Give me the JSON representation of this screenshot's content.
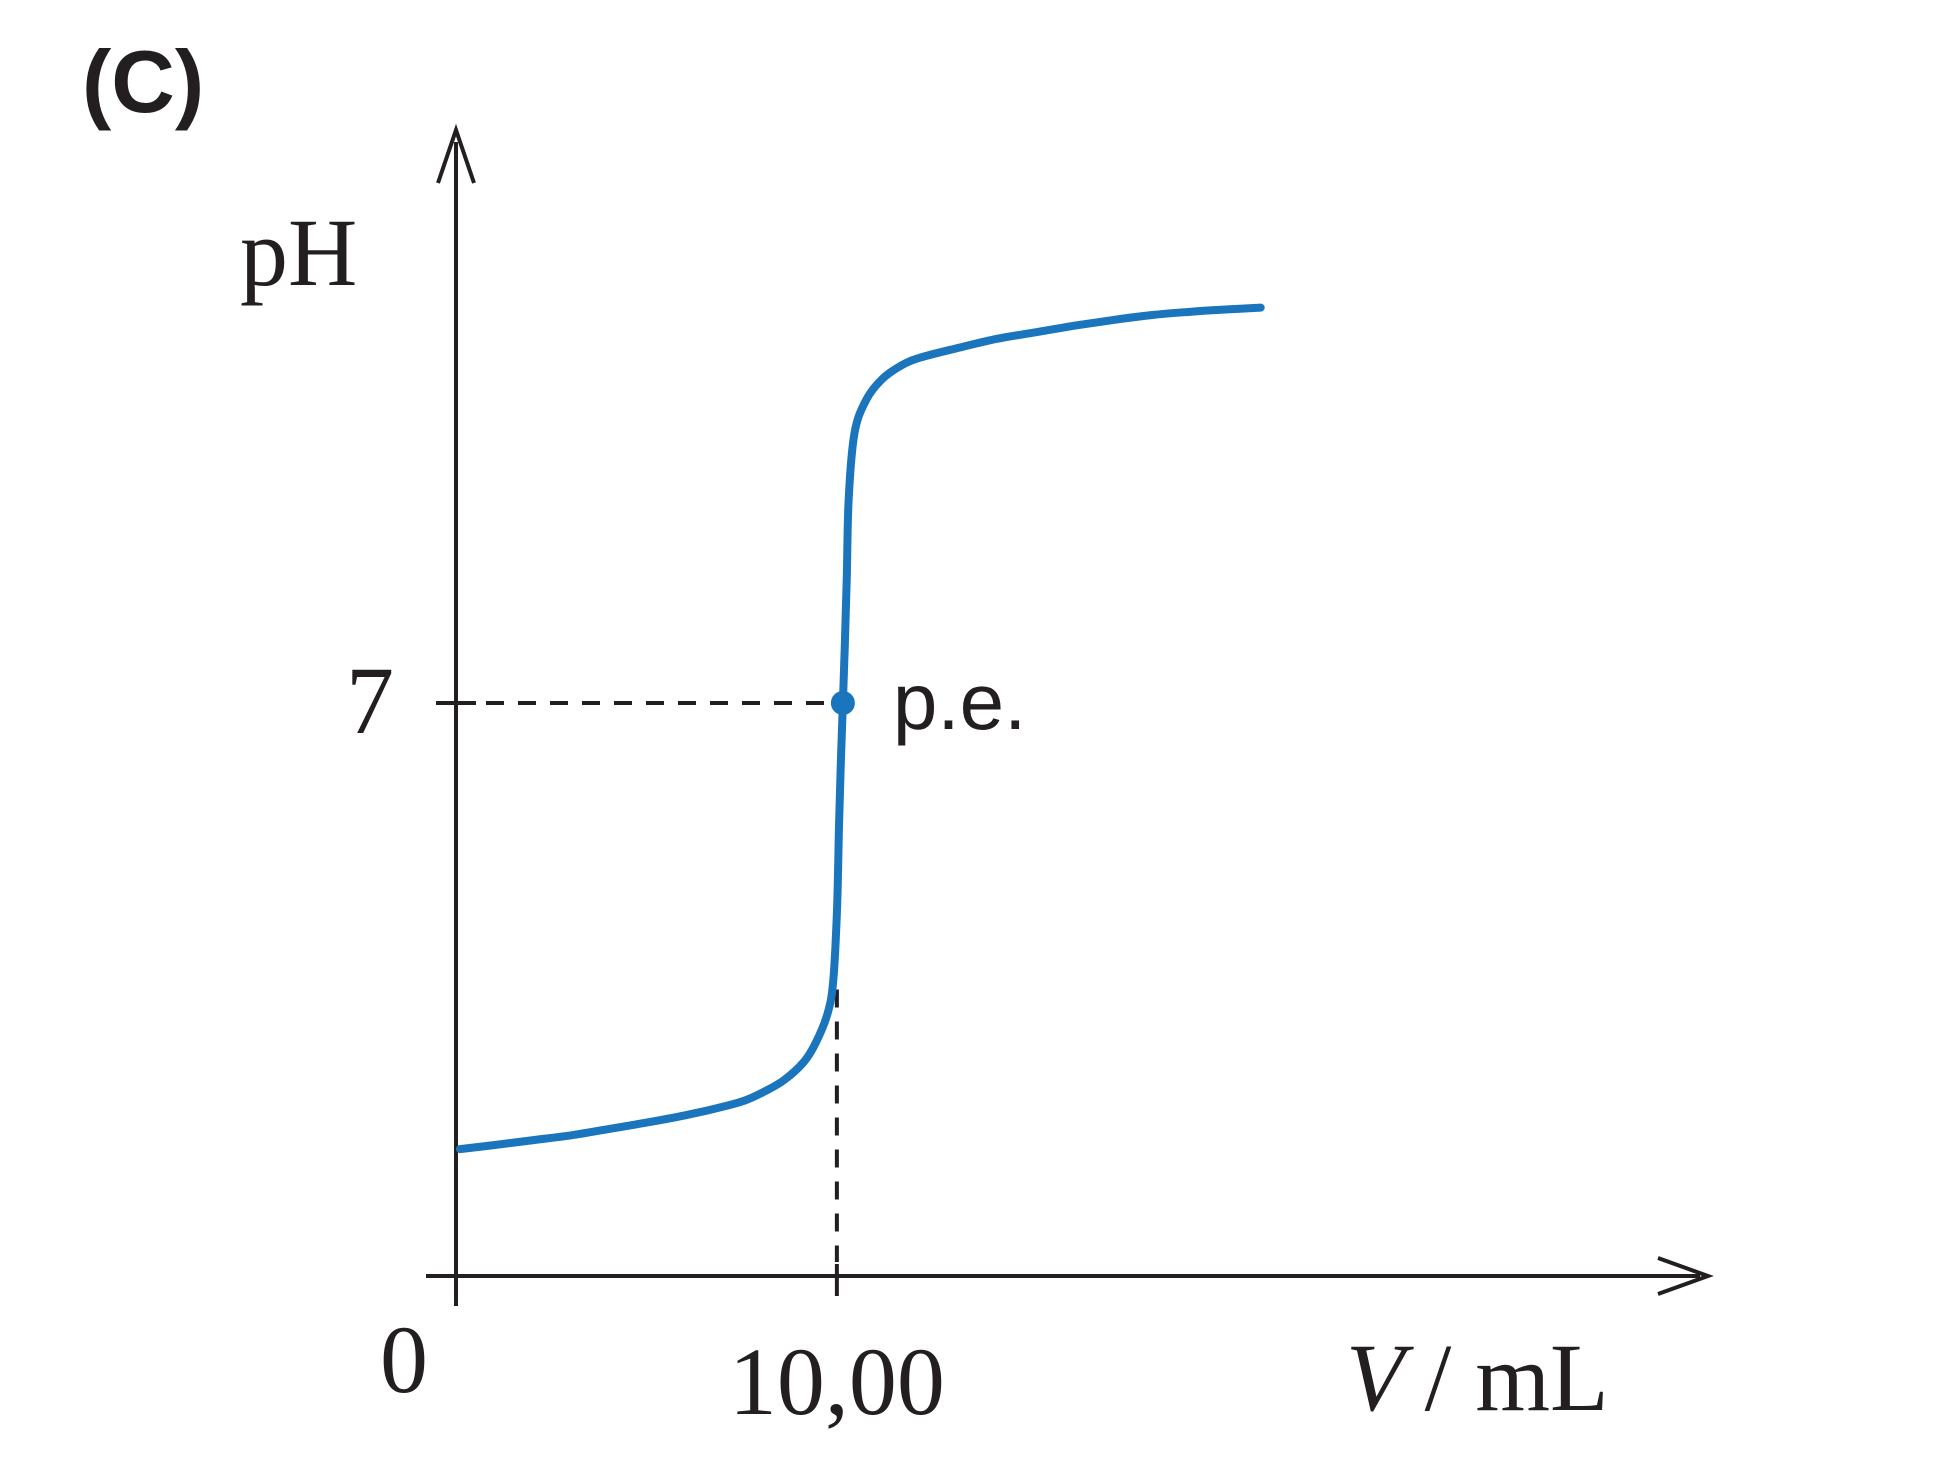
{
  "panel_label": "(C)",
  "chart_data": {
    "type": "line",
    "title": "",
    "ylabel": "pH",
    "xlabel": "V / mL",
    "xlabel_var": "V",
    "xlabel_unit": "/ mL",
    "origin_label": "0",
    "x_ticks": [
      {
        "value": 10.0,
        "label": "10,00"
      }
    ],
    "y_ticks": [
      {
        "value": 7,
        "label": "7"
      }
    ],
    "xlim": [
      0,
      32
    ],
    "ylim": [
      0,
      14
    ],
    "grid": false,
    "legend": "none",
    "colors": {
      "curve": "#1a75bc",
      "axis": "#231f20"
    },
    "series": [
      {
        "x": [
          0.1,
          1,
          2,
          3,
          4,
          5,
          6,
          7,
          7.5,
          8,
          8.5,
          9,
          9.3,
          9.6,
          9.75,
          9.85,
          9.9,
          9.95,
          10.0,
          10.05,
          10.1,
          10.15,
          10.3,
          10.6,
          11,
          11.5,
          12,
          13,
          14,
          15,
          16,
          17,
          18,
          19,
          20,
          20.8
        ],
        "y": [
          1.55,
          1.6,
          1.66,
          1.72,
          1.8,
          1.88,
          1.97,
          2.08,
          2.15,
          2.26,
          2.4,
          2.62,
          2.85,
          3.2,
          3.6,
          4.5,
          5.5,
          6.3,
          7.0,
          7.7,
          8.5,
          9.5,
          10.3,
          10.7,
          10.95,
          11.12,
          11.22,
          11.34,
          11.45,
          11.53,
          11.61,
          11.68,
          11.74,
          11.78,
          11.81,
          11.83
        ]
      }
    ],
    "annotations": [
      {
        "text": "p.e.",
        "x": 10.0,
        "y": 7
      }
    ]
  }
}
